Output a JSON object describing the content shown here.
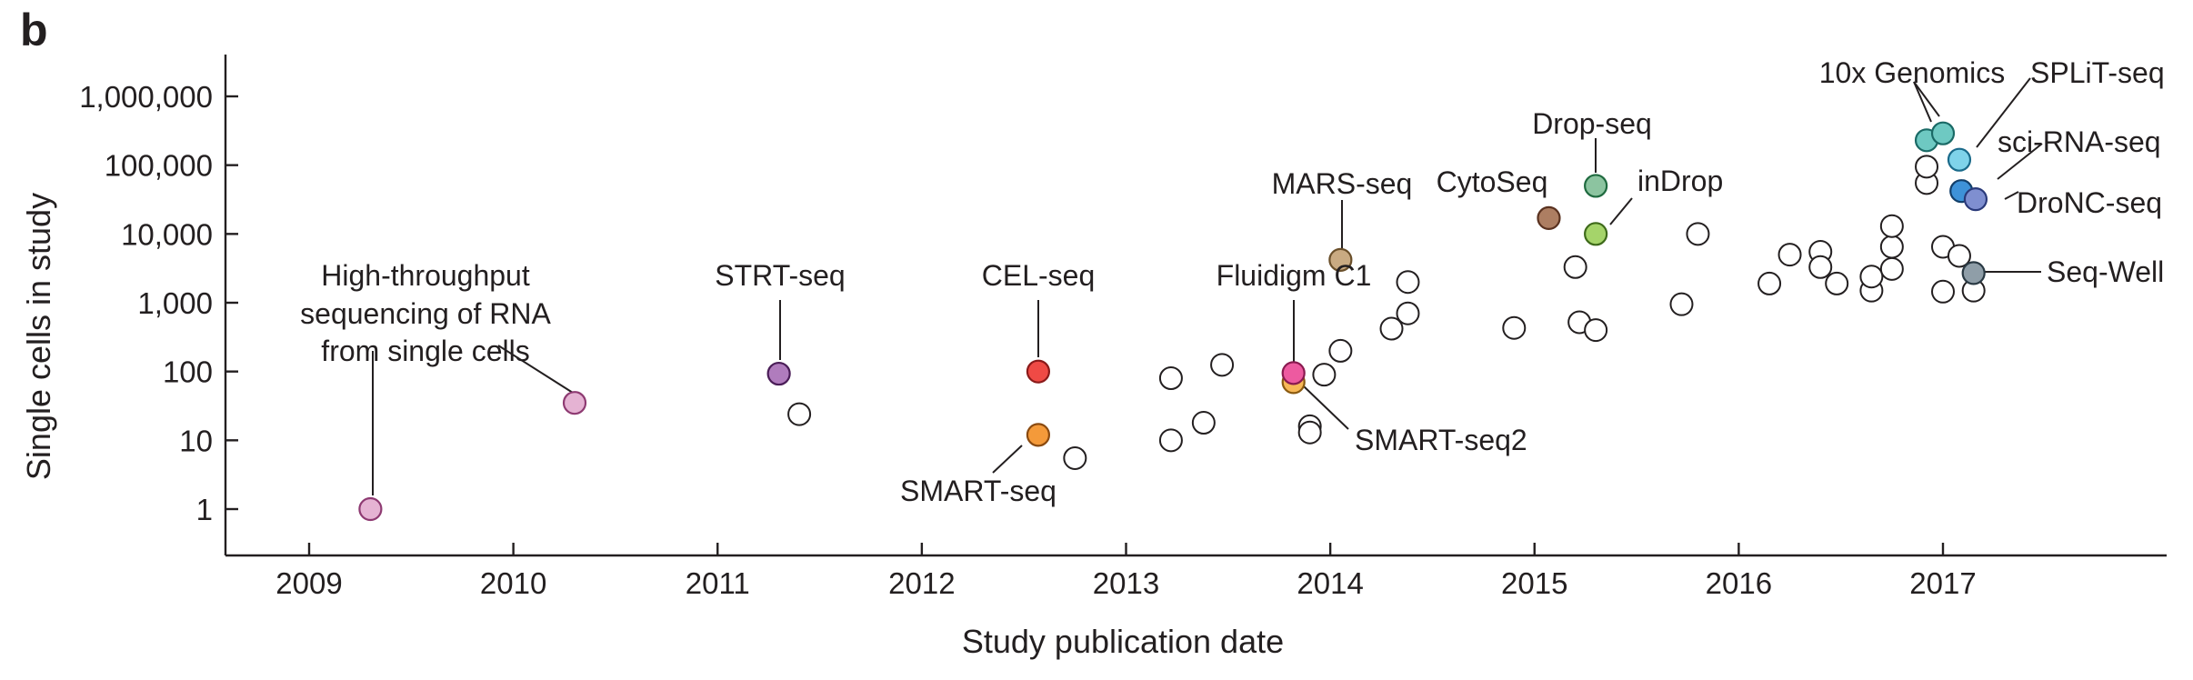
{
  "figure": {
    "panel_label": "b"
  },
  "chart_data": {
    "type": "scatter",
    "title": "",
    "xlabel": "Study publication date",
    "ylabel": "Single cells in study",
    "x_unit": "year",
    "y_scale": "log",
    "xlim": [
      2008.6,
      2018.1
    ],
    "ylim": [
      0.5,
      2000000
    ],
    "x_ticks": [
      2009,
      2010,
      2011,
      2012,
      2013,
      2014,
      2015,
      2016,
      2017
    ],
    "x_tick_labels": [
      "2009",
      "2010",
      "2011",
      "2012",
      "2013",
      "2014",
      "2015",
      "2016",
      "2017"
    ],
    "y_ticks": [
      1,
      10,
      100,
      1000,
      10000,
      100000,
      1000000
    ],
    "y_tick_labels": [
      "1",
      "10",
      "100",
      "1,000",
      "10,000",
      "100,000",
      "1,000,000"
    ],
    "grid": false,
    "colors": {
      "unlabeled_fill": "#ffffff",
      "stroke": "#231f20"
    },
    "highlighted_points": [
      {
        "label": "High-throughput sequencing of RNA from single cells",
        "x": 2009.3,
        "y": 1,
        "fill": "#e5b3d3",
        "stroke": "#8e3a72"
      },
      {
        "label": "High-throughput sequencing of RNA from single cells",
        "x": 2010.3,
        "y": 35,
        "fill": "#e5b3d3",
        "stroke": "#8e3a72"
      },
      {
        "label": "STRT-seq",
        "x": 2011.3,
        "y": 93,
        "fill": "#b07cbd",
        "stroke": "#4a1d57"
      },
      {
        "label": "CEL-seq",
        "x": 2012.57,
        "y": 100,
        "fill": "#ef4a45",
        "stroke": "#8a1a1a"
      },
      {
        "label": "SMART-seq",
        "x": 2012.57,
        "y": 12,
        "fill": "#f49a3a",
        "stroke": "#8a4a10"
      },
      {
        "label": "SMART-seq2",
        "x": 2013.82,
        "y": 70,
        "fill": "#f7b857",
        "stroke": "#8a5a10"
      },
      {
        "label": "Fluidigm C1",
        "x": 2013.82,
        "y": 95,
        "fill": "#ed5aa0",
        "stroke": "#8a1a50"
      },
      {
        "label": "MARS-seq",
        "x": 2014.05,
        "y": 4200,
        "fill": "#c9aa82",
        "stroke": "#6a4f2a"
      },
      {
        "label": "CytoSeq",
        "x": 2015.07,
        "y": 17000,
        "fill": "#ad7e62",
        "stroke": "#5a3220"
      },
      {
        "label": "Drop-seq",
        "x": 2015.3,
        "y": 50000,
        "fill": "#8cc4a0",
        "stroke": "#1f6a3f"
      },
      {
        "label": "inDrop",
        "x": 2015.3,
        "y": 10000,
        "fill": "#a5d46a",
        "stroke": "#3e6a1a"
      },
      {
        "label": "10x Genomics",
        "x": 2016.92,
        "y": 230000,
        "fill": "#6ec9c2",
        "stroke": "#1a6a66"
      },
      {
        "label": "10x Genomics",
        "x": 2017.0,
        "y": 290000,
        "fill": "#6ec9c2",
        "stroke": "#1a6a66"
      },
      {
        "label": "SPLiT-seq",
        "x": 2017.08,
        "y": 120000,
        "fill": "#7fd3ea",
        "stroke": "#1a6a8a"
      },
      {
        "label": "sci-RNA-seq",
        "x": 2017.09,
        "y": 42000,
        "fill": "#3e92d8",
        "stroke": "#123f6a"
      },
      {
        "label": "DroNC-seq",
        "x": 2017.16,
        "y": 32000,
        "fill": "#7f8fd0",
        "stroke": "#2a3a7a"
      },
      {
        "label": "Seq-Well",
        "x": 2017.15,
        "y": 2700,
        "fill": "#8f9ea8",
        "stroke": "#2a3a44"
      }
    ],
    "points": [
      {
        "x": 2011.4,
        "y": 24
      },
      {
        "x": 2012.75,
        "y": 5.5
      },
      {
        "x": 2013.22,
        "y": 10
      },
      {
        "x": 2013.22,
        "y": 80
      },
      {
        "x": 2013.38,
        "y": 18
      },
      {
        "x": 2013.47,
        "y": 125
      },
      {
        "x": 2013.9,
        "y": 16
      },
      {
        "x": 2013.9,
        "y": 13
      },
      {
        "x": 2013.97,
        "y": 90
      },
      {
        "x": 2014.05,
        "y": 200
      },
      {
        "x": 2014.3,
        "y": 420
      },
      {
        "x": 2014.38,
        "y": 700
      },
      {
        "x": 2014.38,
        "y": 2000
      },
      {
        "x": 2014.9,
        "y": 430
      },
      {
        "x": 2015.2,
        "y": 3300
      },
      {
        "x": 2015.22,
        "y": 520
      },
      {
        "x": 2015.3,
        "y": 400
      },
      {
        "x": 2015.72,
        "y": 950
      },
      {
        "x": 2015.8,
        "y": 10000
      },
      {
        "x": 2016.15,
        "y": 1900
      },
      {
        "x": 2016.25,
        "y": 5000
      },
      {
        "x": 2016.4,
        "y": 5500
      },
      {
        "x": 2016.4,
        "y": 3300
      },
      {
        "x": 2016.48,
        "y": 1900
      },
      {
        "x": 2016.65,
        "y": 1500
      },
      {
        "x": 2016.65,
        "y": 2400
      },
      {
        "x": 2016.75,
        "y": 3100
      },
      {
        "x": 2016.75,
        "y": 6500
      },
      {
        "x": 2016.75,
        "y": 13000
      },
      {
        "x": 2016.92,
        "y": 55000
      },
      {
        "x": 2016.92,
        "y": 95000
      },
      {
        "x": 2017.0,
        "y": 6500
      },
      {
        "x": 2017.0,
        "y": 1450
      },
      {
        "x": 2017.08,
        "y": 4800
      },
      {
        "x": 2017.15,
        "y": 1500
      }
    ],
    "annotations": [
      {
        "text": "High-throughput",
        "text_anchor": "middle"
      },
      {
        "text": "sequencing of RNA",
        "text_anchor": "middle"
      },
      {
        "text": "from single cells",
        "text_anchor": "middle"
      },
      {
        "text": "STRT-seq",
        "text_anchor": "middle"
      },
      {
        "text": "CEL-seq",
        "text_anchor": "middle"
      },
      {
        "text": "SMART-seq",
        "text_anchor": "middle"
      },
      {
        "text": "Fluidigm C1",
        "text_anchor": "middle"
      },
      {
        "text": "SMART-seq2",
        "text_anchor": "start"
      },
      {
        "text": "MARS-seq",
        "text_anchor": "middle"
      },
      {
        "text": "CytoSeq",
        "text_anchor": "middle"
      },
      {
        "text": "Drop-seq",
        "text_anchor": "middle"
      },
      {
        "text": "inDrop",
        "text_anchor": "start"
      },
      {
        "text": "10x Genomics",
        "text_anchor": "middle"
      },
      {
        "text": "SPLiT-seq",
        "text_anchor": "start"
      },
      {
        "text": "sci-RNA-seq",
        "text_anchor": "start"
      },
      {
        "text": "DroNC-seq",
        "text_anchor": "start"
      },
      {
        "text": "Seq-Well",
        "text_anchor": "start"
      }
    ]
  }
}
